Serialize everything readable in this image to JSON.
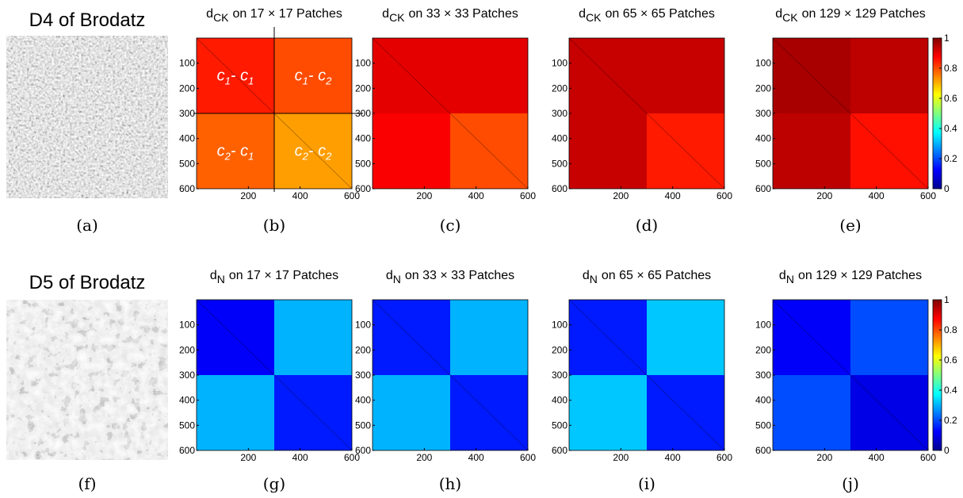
{
  "images": [
    {
      "title": "D4 of Brodatz",
      "caption": "(a)"
    },
    {
      "title": "D5 of Brodatz",
      "caption": "(f)"
    }
  ],
  "chart_data": [
    {
      "type": "heatmap",
      "title": {
        "text": "d",
        "subscript": "CK",
        "rest": "on 17 × 17 Patches"
      },
      "caption": "(b)",
      "block_edges": [
        0,
        300,
        600
      ],
      "blocks": [
        [
          0.85,
          0.8
        ],
        [
          0.78,
          0.72
        ]
      ],
      "xlim": [
        0,
        600
      ],
      "ylim": [
        0,
        600
      ],
      "xticks": [
        200,
        400,
        600
      ],
      "yticks": [
        100,
        200,
        300,
        400,
        500,
        600
      ],
      "clim": [
        0,
        1
      ],
      "annotations": [
        [
          "c",
          "1",
          "- c",
          "1"
        ],
        [
          "c",
          "1",
          "- c",
          "2"
        ],
        [
          "c",
          "2",
          "- c",
          "1"
        ],
        [
          "c",
          "2",
          "- c",
          "2"
        ]
      ]
    },
    {
      "type": "heatmap",
      "title": {
        "text": "d",
        "subscript": "CK",
        "rest": "on 33 × 33 Patches"
      },
      "caption": "(c)",
      "block_edges": [
        0,
        300,
        600
      ],
      "blocks": [
        [
          0.9,
          0.9
        ],
        [
          0.88,
          0.8
        ]
      ],
      "xlim": [
        0,
        600
      ],
      "ylim": [
        0,
        600
      ],
      "xticks": [
        200,
        400,
        600
      ],
      "yticks": [
        100,
        200,
        300,
        400,
        500,
        600
      ],
      "clim": [
        0,
        1
      ]
    },
    {
      "type": "heatmap",
      "title": {
        "text": "d",
        "subscript": "CK",
        "rest": "on 65 × 65 Patches"
      },
      "caption": "(d)",
      "block_edges": [
        0,
        300,
        600
      ],
      "blocks": [
        [
          0.93,
          0.93
        ],
        [
          0.93,
          0.85
        ]
      ],
      "xlim": [
        0,
        600
      ],
      "ylim": [
        0,
        600
      ],
      "xticks": [
        200,
        400,
        600
      ],
      "yticks": [
        100,
        200,
        300,
        400,
        500,
        600
      ],
      "clim": [
        0,
        1
      ]
    },
    {
      "type": "heatmap",
      "title": {
        "text": "d",
        "subscript": "CK",
        "rest": "on 129 × 129 Patches"
      },
      "caption": "(e)",
      "block_edges": [
        0,
        300,
        600
      ],
      "blocks": [
        [
          0.96,
          0.94
        ],
        [
          0.94,
          0.86
        ]
      ],
      "xlim": [
        0,
        600
      ],
      "ylim": [
        0,
        600
      ],
      "xticks": [
        200,
        400,
        600
      ],
      "yticks": [
        100,
        200,
        300,
        400,
        500,
        600
      ],
      "clim": [
        0,
        1
      ],
      "colorbar": true,
      "cticks": [
        0,
        0.2,
        0.4,
        0.6,
        0.8,
        1
      ]
    },
    {
      "type": "heatmap",
      "title": {
        "text": "d",
        "subscript": "N",
        "rest": "on 17 × 17 Patches"
      },
      "caption": "(g)",
      "block_edges": [
        0,
        300,
        600
      ],
      "blocks": [
        [
          0.12,
          0.3
        ],
        [
          0.3,
          0.15
        ]
      ],
      "xlim": [
        0,
        600
      ],
      "ylim": [
        0,
        600
      ],
      "xticks": [
        200,
        400,
        600
      ],
      "yticks": [
        100,
        200,
        300,
        400,
        500,
        600
      ],
      "clim": [
        0,
        1
      ]
    },
    {
      "type": "heatmap",
      "title": {
        "text": "d",
        "subscript": "N",
        "rest": "on 33 × 33 Patches"
      },
      "caption": "(h)",
      "block_edges": [
        0,
        300,
        600
      ],
      "blocks": [
        [
          0.15,
          0.3
        ],
        [
          0.3,
          0.15
        ]
      ],
      "xlim": [
        0,
        600
      ],
      "ylim": [
        0,
        600
      ],
      "xticks": [
        200,
        400,
        600
      ],
      "yticks": [
        100,
        200,
        300,
        400,
        500,
        600
      ],
      "clim": [
        0,
        1
      ]
    },
    {
      "type": "heatmap",
      "title": {
        "text": "d",
        "subscript": "N",
        "rest": "on 65 × 65 Patches"
      },
      "caption": "(i)",
      "block_edges": [
        0,
        300,
        600
      ],
      "blocks": [
        [
          0.15,
          0.32
        ],
        [
          0.32,
          0.15
        ]
      ],
      "xlim": [
        0,
        600
      ],
      "ylim": [
        0,
        600
      ],
      "xticks": [
        200,
        400,
        600
      ],
      "yticks": [
        100,
        200,
        300,
        400,
        500,
        600
      ],
      "clim": [
        0,
        1
      ]
    },
    {
      "type": "heatmap",
      "title": {
        "text": "d",
        "subscript": "N",
        "rest": "on 129 × 129 Patches"
      },
      "caption": "(j)",
      "block_edges": [
        0,
        300,
        600
      ],
      "blocks": [
        [
          0.12,
          0.2
        ],
        [
          0.2,
          0.1
        ]
      ],
      "xlim": [
        0,
        600
      ],
      "ylim": [
        0,
        600
      ],
      "xticks": [
        200,
        400,
        600
      ],
      "yticks": [
        100,
        200,
        300,
        400,
        500,
        600
      ],
      "clim": [
        0,
        1
      ],
      "colorbar": true,
      "cticks": [
        0,
        0.2,
        0.4,
        0.6,
        0.8,
        1
      ]
    }
  ]
}
